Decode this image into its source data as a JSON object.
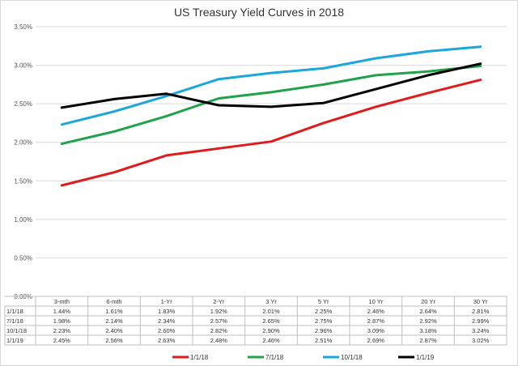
{
  "chart_data": {
    "type": "line",
    "title": "US Treasury Yield Curves in 2018",
    "categories": [
      "3-mth",
      "6-mth",
      "1-Yr",
      "2-Yr",
      "3 Yr",
      "5 Yr",
      "10 Yr",
      "20 Yr",
      "30 Yr"
    ],
    "yticks": [
      "0.00%",
      "0.50%",
      "1.00%",
      "1.50%",
      "2.00%",
      "2.50%",
      "3.00%",
      "3.50%"
    ],
    "ylim": [
      0,
      3.5
    ],
    "grid": true,
    "legend_position": "bottom",
    "series": [
      {
        "name": "1/1/18",
        "color": "#e31a1c",
        "values": [
          1.44,
          1.61,
          1.83,
          1.92,
          2.01,
          2.25,
          2.46,
          2.64,
          2.81
        ],
        "labels": [
          "1.44%",
          "1.61%",
          "1.83%",
          "1.92%",
          "2.01%",
          "2.25%",
          "2.46%",
          "2.64%",
          "2.81%"
        ]
      },
      {
        "name": "7/1/18",
        "color": "#1fa24a",
        "values": [
          1.98,
          2.14,
          2.34,
          2.57,
          2.65,
          2.75,
          2.87,
          2.92,
          2.99
        ],
        "labels": [
          "1.98%",
          "2.14%",
          "2.34%",
          "2.57%",
          "2.65%",
          "2.75%",
          "2.87%",
          "2.92%",
          "2.99%"
        ]
      },
      {
        "name": "10/1/18",
        "color": "#1aa7dc",
        "values": [
          2.23,
          2.4,
          2.6,
          2.82,
          2.9,
          2.96,
          3.09,
          3.18,
          3.24
        ],
        "labels": [
          "2.23%",
          "2.40%",
          "2.60%",
          "2.82%",
          "2.90%",
          "2.96%",
          "3.09%",
          "3.18%",
          "3.24%"
        ]
      },
      {
        "name": "1/1/19",
        "color": "#000000",
        "values": [
          2.45,
          2.56,
          2.63,
          2.48,
          2.46,
          2.51,
          2.69,
          2.87,
          3.02
        ],
        "labels": [
          "2.45%",
          "2.56%",
          "2.63%",
          "2.48%",
          "2.46%",
          "2.51%",
          "2.69%",
          "2.87%",
          "3.02%"
        ]
      }
    ]
  }
}
